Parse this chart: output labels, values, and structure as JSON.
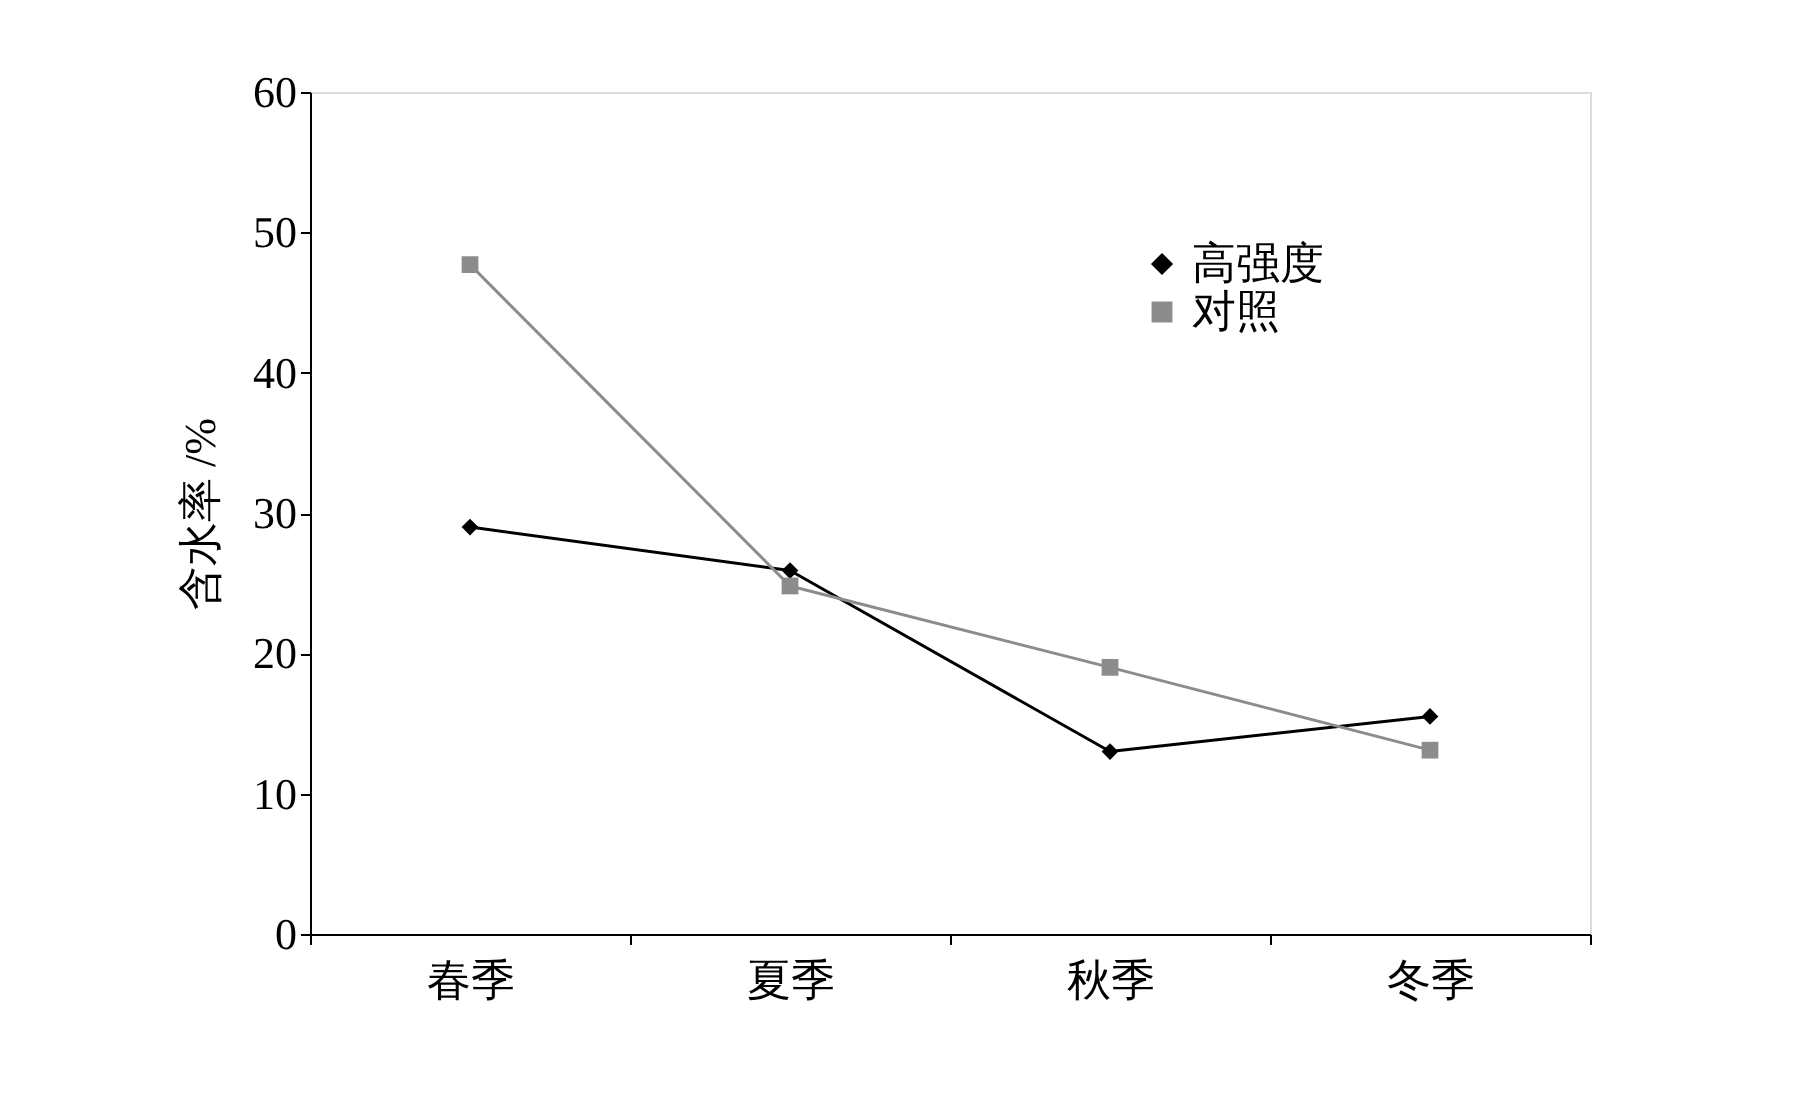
{
  "chart_data": {
    "type": "line",
    "ylabel": "含水率 /%",
    "categories": [
      "春季",
      "夏季",
      "秋季",
      "冬季"
    ],
    "series": [
      {
        "name": "高强度",
        "color": "#000000",
        "marker": "diamond",
        "values": [
          29.0,
          25.9,
          13.0,
          15.5
        ]
      },
      {
        "name": "对照",
        "color": "#8c8c8c",
        "marker": "square",
        "values": [
          47.7,
          24.8,
          19.0,
          13.1
        ]
      }
    ],
    "ylim": [
      0,
      60
    ],
    "yticks": [
      0,
      10,
      20,
      30,
      40,
      50,
      60
    ],
    "grid": false,
    "legend": "top right",
    "line_style": "solid"
  }
}
